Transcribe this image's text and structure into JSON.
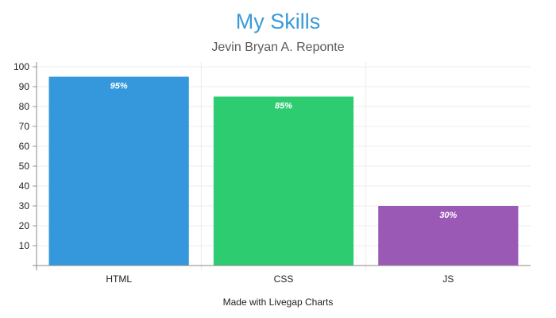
{
  "chart_data": {
    "type": "bar",
    "title": "My Skills",
    "subtitle": "Jevin Bryan A. Reponte",
    "categories": [
      "HTML",
      "CSS",
      "JS"
    ],
    "values": [
      95,
      85,
      30
    ],
    "data_labels": [
      "95%",
      "85%",
      "30%"
    ],
    "colors": [
      "#3598dc",
      "#2ecc71",
      "#9b59b6"
    ],
    "xlabel": "",
    "ylabel": "",
    "ylim": [
      0,
      100
    ],
    "yticks": [
      10,
      20,
      30,
      40,
      50,
      60,
      70,
      80,
      90,
      100
    ],
    "grid": true,
    "legend": "none"
  },
  "footer": "Made with Livegap Charts"
}
